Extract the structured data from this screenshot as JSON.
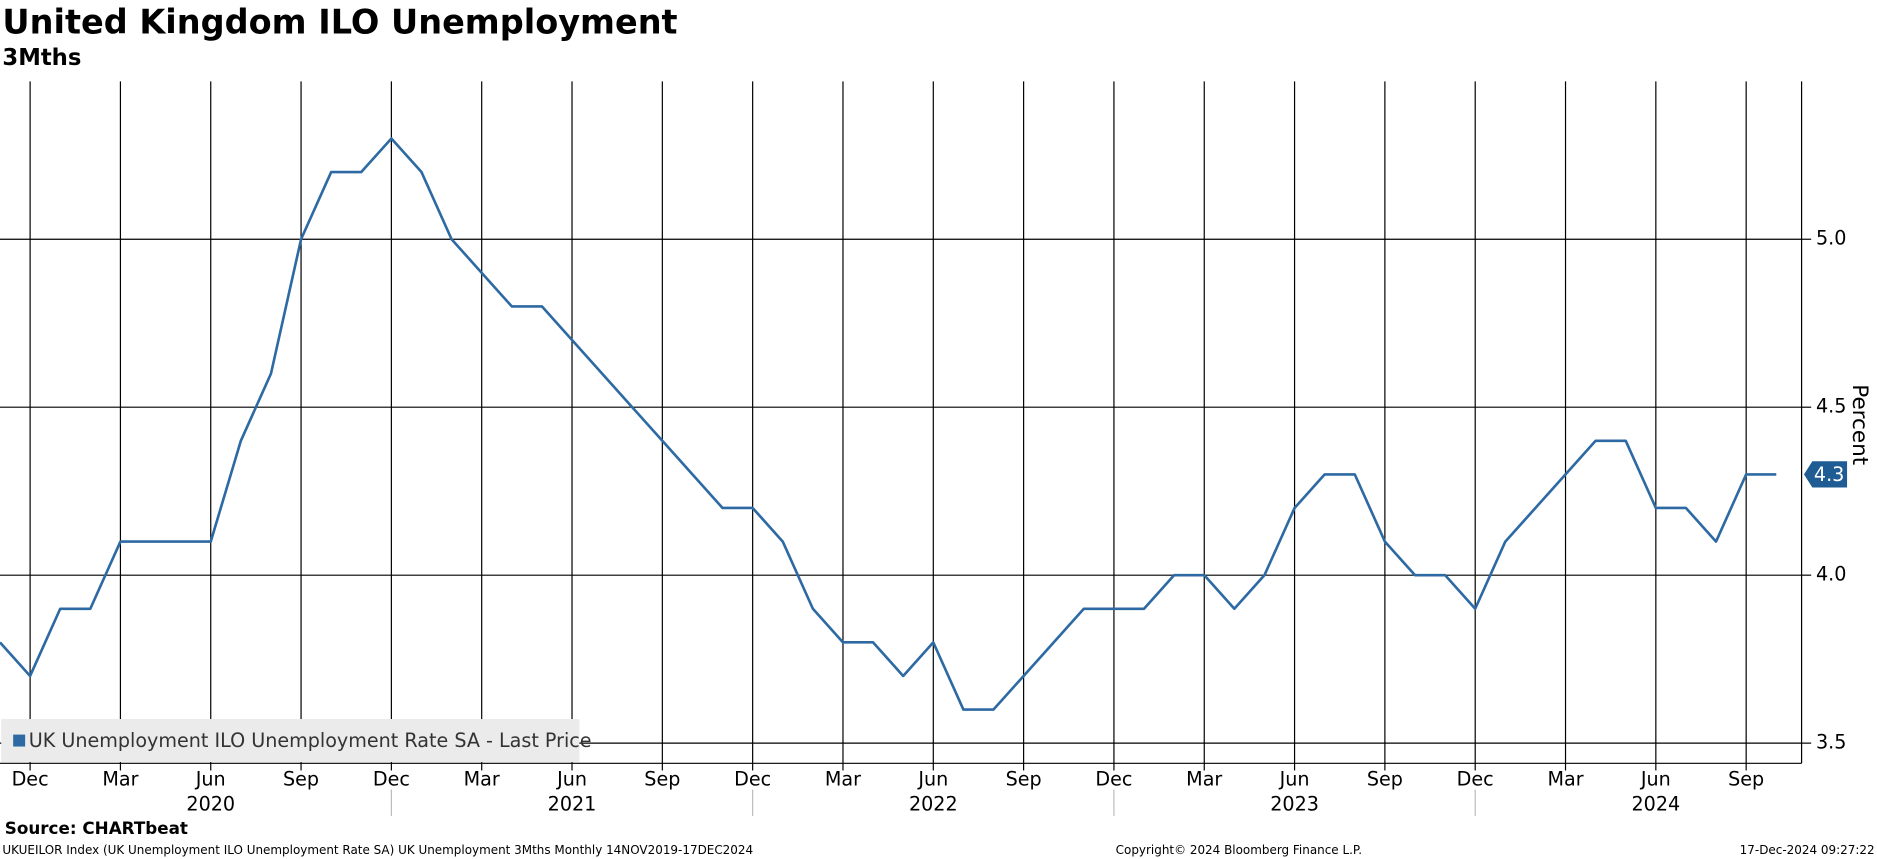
{
  "chart_data": {
    "type": "line",
    "title": "United Kingdom ILO Unemployment",
    "subtitle": "3Mths",
    "y_label": "Percent",
    "source": "Source: CHARTbeat",
    "footer_left": "UKUEILOR Index (UK Unemployment ILO Unemployment Rate SA) UK Unemployment 3Mths  Monthly 14NOV2019-17DEC2024",
    "copyright": "Copyright© 2024 Bloomberg Finance L.P.",
    "timestamp": "17-Dec-2024 09:27:22",
    "x": [
      "2019-11",
      "2019-12",
      "2020-01",
      "2020-02",
      "2020-03",
      "2020-04",
      "2020-05",
      "2020-06",
      "2020-07",
      "2020-08",
      "2020-09",
      "2020-10",
      "2020-11",
      "2020-12",
      "2021-01",
      "2021-02",
      "2021-03",
      "2021-04",
      "2021-05",
      "2021-06",
      "2021-07",
      "2021-08",
      "2021-09",
      "2021-10",
      "2021-11",
      "2021-12",
      "2022-01",
      "2022-02",
      "2022-03",
      "2022-04",
      "2022-05",
      "2022-06",
      "2022-07",
      "2022-08",
      "2022-09",
      "2022-10",
      "2022-11",
      "2022-12",
      "2023-01",
      "2023-02",
      "2023-03",
      "2023-04",
      "2023-05",
      "2023-06",
      "2023-07",
      "2023-08",
      "2023-09",
      "2023-10",
      "2023-11",
      "2023-12",
      "2024-01",
      "2024-02",
      "2024-03",
      "2024-04",
      "2024-05",
      "2024-06",
      "2024-07",
      "2024-08",
      "2024-09",
      "2024-10"
    ],
    "series": [
      {
        "name": "UK Unemployment ILO Unemployment Rate SA - Last Price",
        "color": "#2d6aa3",
        "values": [
          3.8,
          3.7,
          3.9,
          3.9,
          4.1,
          4.1,
          4.1,
          4.1,
          4.4,
          4.6,
          5.0,
          5.2,
          5.2,
          5.3,
          5.2,
          5.0,
          4.9,
          4.8,
          4.8,
          4.7,
          4.6,
          4.5,
          4.4,
          4.3,
          4.2,
          4.2,
          4.1,
          3.9,
          3.8,
          3.8,
          3.7,
          3.8,
          3.6,
          3.6,
          3.7,
          3.8,
          3.9,
          3.9,
          3.9,
          4.0,
          4.0,
          3.9,
          4.0,
          4.2,
          4.3,
          4.3,
          4.1,
          4.0,
          4.0,
          3.9,
          4.1,
          4.2,
          4.3,
          4.4,
          4.4,
          4.2,
          4.2,
          4.1,
          4.3,
          4.3
        ]
      }
    ],
    "xticks": [
      {
        "value": "2019-12",
        "label": "Dec"
      },
      {
        "value": "2020-03",
        "label": "Mar"
      },
      {
        "value": "2020-06",
        "label": "Jun"
      },
      {
        "value": "2020-09",
        "label": "Sep"
      },
      {
        "value": "2020-12",
        "label": "Dec"
      },
      {
        "value": "2021-03",
        "label": "Mar"
      },
      {
        "value": "2021-06",
        "label": "Jun"
      },
      {
        "value": "2021-09",
        "label": "Sep"
      },
      {
        "value": "2021-12",
        "label": "Dec"
      },
      {
        "value": "2022-03",
        "label": "Mar"
      },
      {
        "value": "2022-06",
        "label": "Jun"
      },
      {
        "value": "2022-09",
        "label": "Sep"
      },
      {
        "value": "2022-12",
        "label": "Dec"
      },
      {
        "value": "2023-03",
        "label": "Mar"
      },
      {
        "value": "2023-06",
        "label": "Jun"
      },
      {
        "value": "2023-09",
        "label": "Sep"
      },
      {
        "value": "2023-12",
        "label": "Dec"
      },
      {
        "value": "2024-03",
        "label": "Mar"
      },
      {
        "value": "2024-06",
        "label": "Jun"
      },
      {
        "value": "2024-09",
        "label": "Sep"
      }
    ],
    "year_labels": [
      "2020",
      "2021",
      "2022",
      "2023",
      "2024"
    ],
    "ylim": [
      3.44,
      5.47
    ],
    "yticks": [
      {
        "value": 3.5,
        "label": "3.5"
      },
      {
        "value": 4,
        "label": "4.0"
      },
      {
        "value": 4.5,
        "label": "4.5"
      },
      {
        "value": 5,
        "label": "5.0"
      }
    ],
    "grid": true,
    "legend": "bottom-left"
  }
}
